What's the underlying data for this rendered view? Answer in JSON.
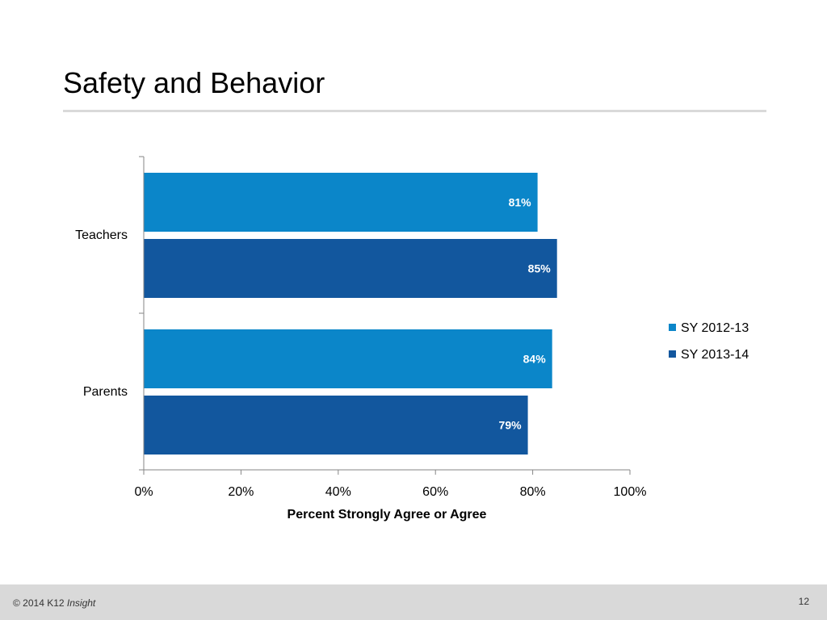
{
  "slide": {
    "title": "Safety and Behavior",
    "page_number": "12"
  },
  "footer": {
    "copyright": "© 2014 K12",
    "brand": "Insight"
  },
  "chart_data": {
    "type": "bar",
    "orientation": "horizontal",
    "categories": [
      "Teachers",
      "Parents"
    ],
    "series": [
      {
        "name": "SY 2012-13",
        "values": [
          81,
          84
        ],
        "labels": [
          "81%",
          "84%"
        ],
        "color": "#0b86c9"
      },
      {
        "name": "SY 2013-14",
        "values": [
          85,
          79
        ],
        "labels": [
          "85%",
          "79%"
        ],
        "color": "#12579e"
      }
    ],
    "xlabel": "Percent Strongly Agree or Agree",
    "ylabel": "",
    "xlim": [
      0,
      100
    ],
    "xticks": [
      "0%",
      "20%",
      "40%",
      "60%",
      "80%",
      "100%"
    ],
    "grid": false,
    "legend_position": "right"
  }
}
